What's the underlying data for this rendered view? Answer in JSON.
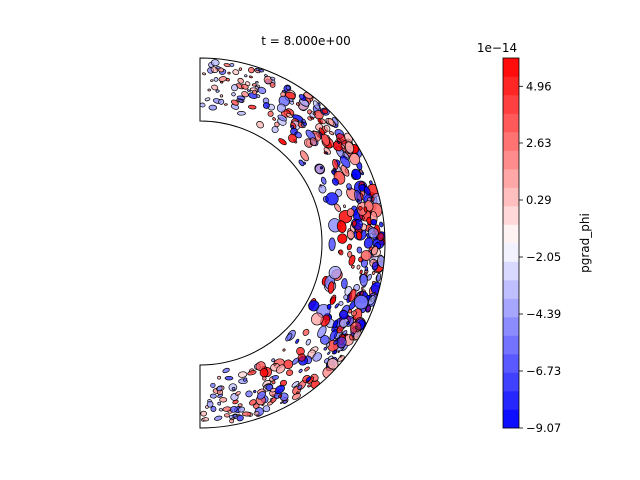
{
  "chart_data": {
    "type": "heatmap",
    "title": "t = 8.000e+00",
    "geometry": "meridional half-annulus (shell cross-section)",
    "colorbar": {
      "label": "pgrad_phi",
      "multiplier": "1e−14",
      "ticks": [
        "4.96",
        "2.63",
        "0.29",
        "−2.05",
        "−4.39",
        "−6.73",
        "−9.07"
      ],
      "tick_values": [
        4.96,
        2.63,
        0.29,
        -2.05,
        -4.39,
        -6.73,
        -9.07
      ],
      "range": [
        -9.07,
        6.12
      ],
      "levels": 20,
      "colormap": "bwr",
      "colormap_stops": [
        "#0000ff",
        "#ffffff",
        "#ff0000"
      ]
    },
    "contour_lines": true,
    "contour_line_color": "#000000"
  }
}
